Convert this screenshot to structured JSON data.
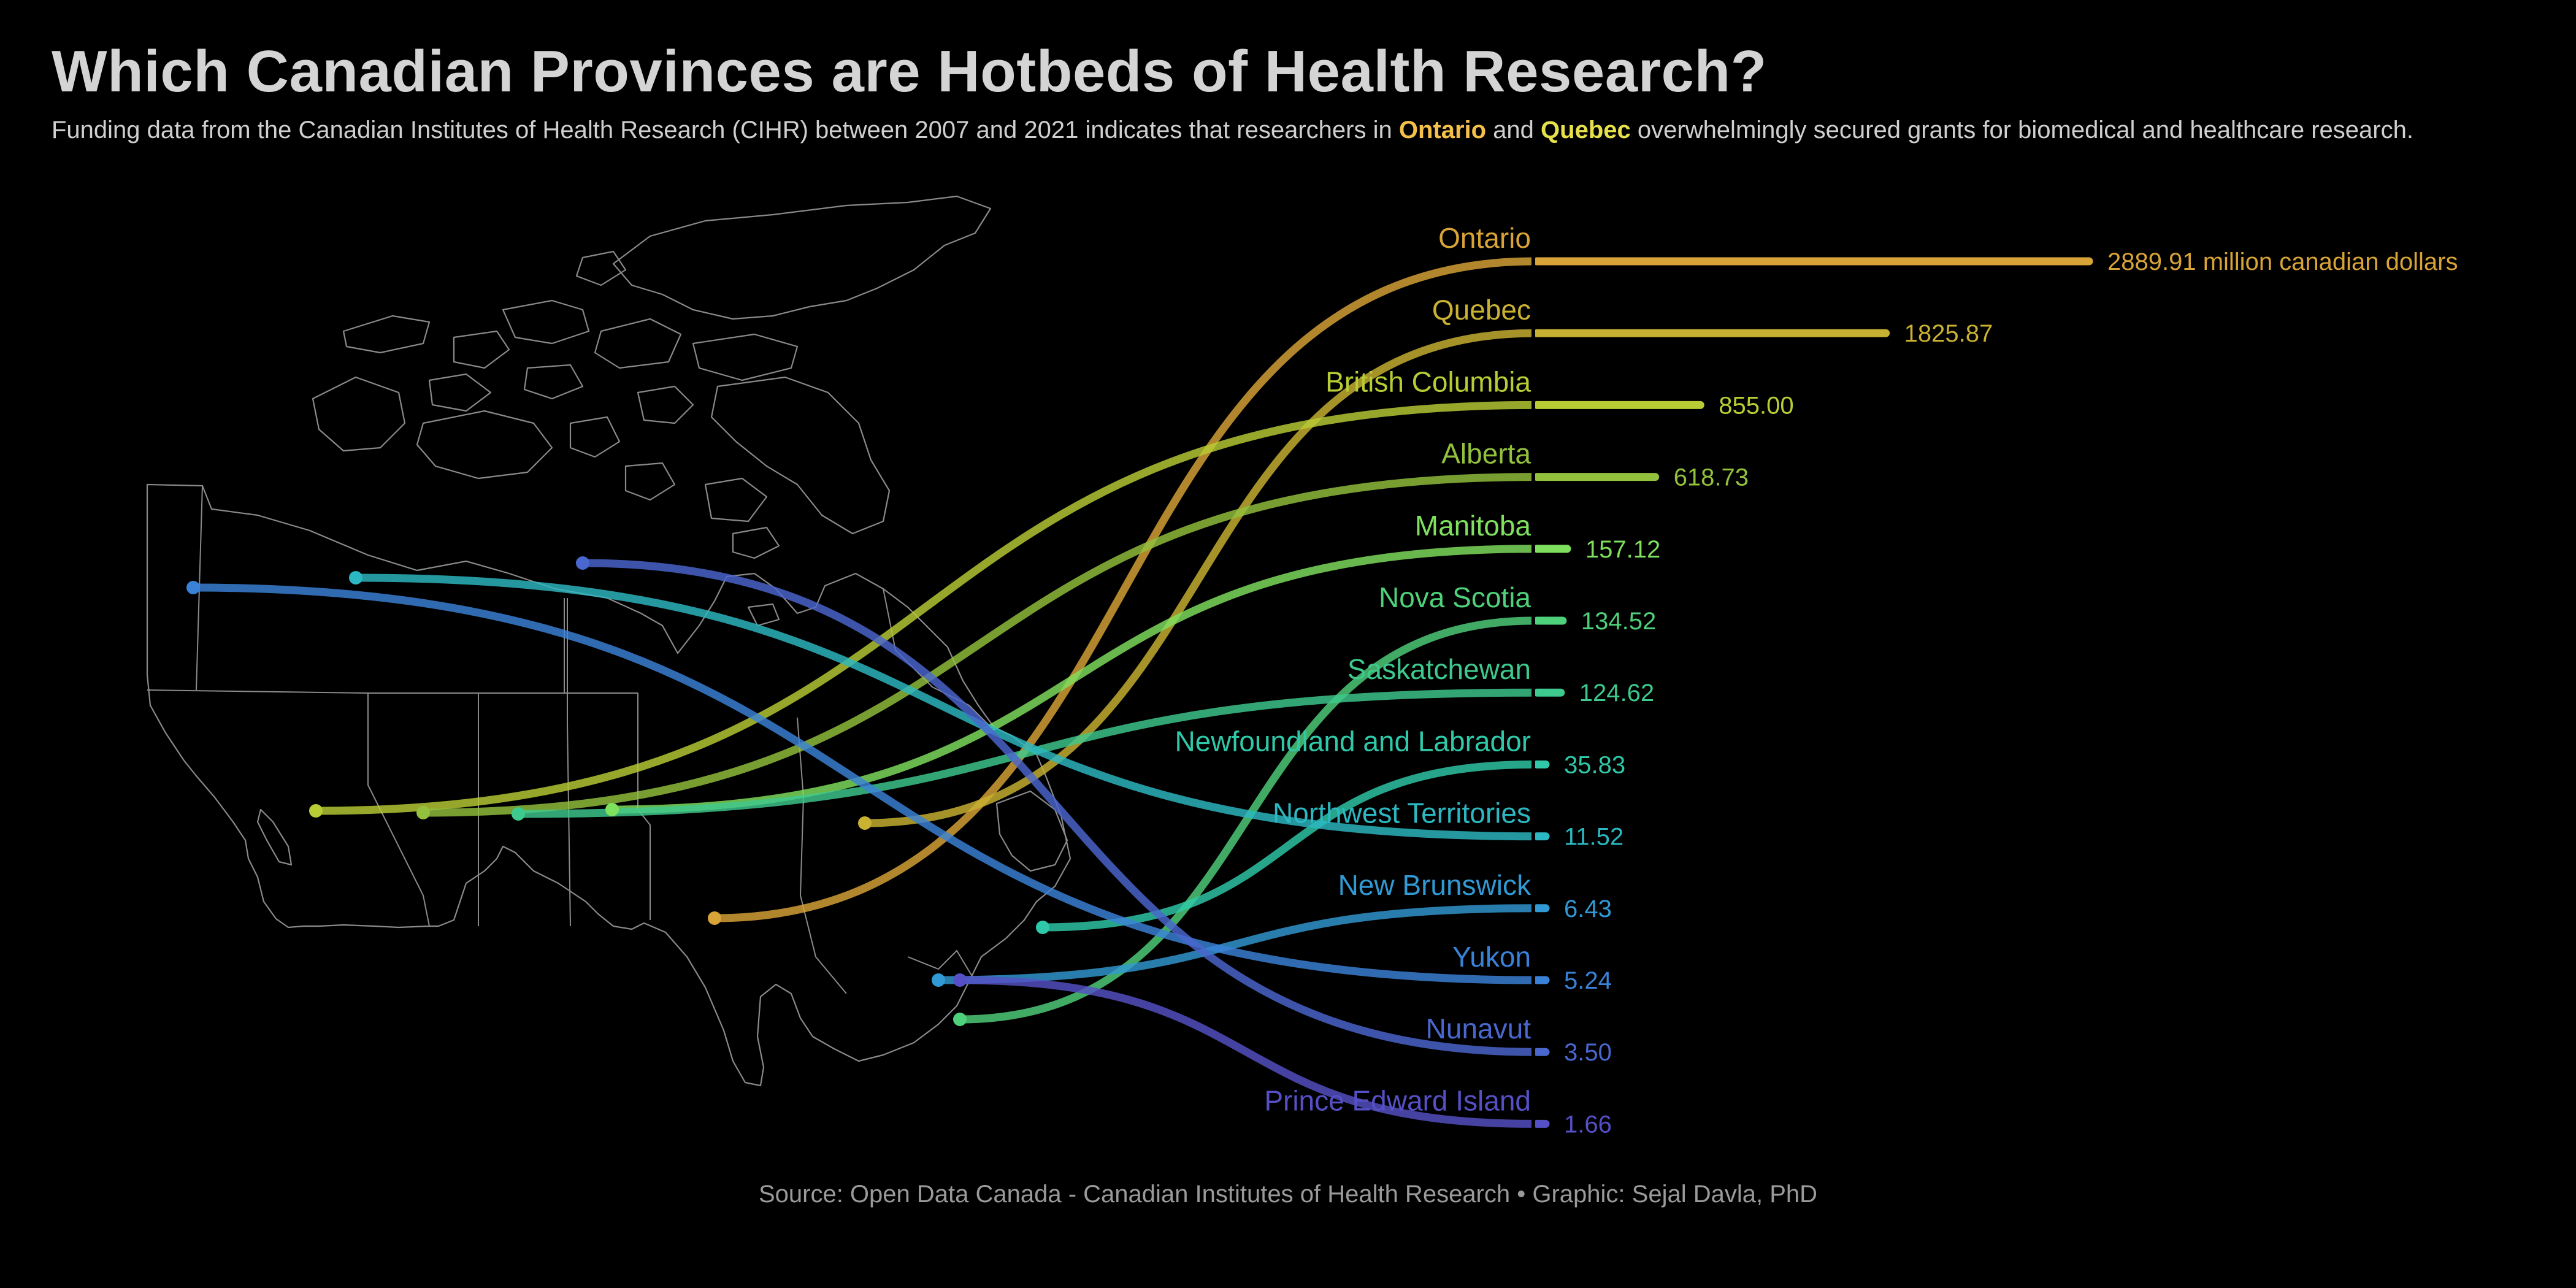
{
  "header": {
    "title": "Which Canadian Provinces are Hotbeds of Health Research?",
    "subtitle_before": "Funding data from the Canadian Institutes of Health Research (CIHR) between 2007 and 2021 indicates that researchers in ",
    "subtitle_hl1": "Ontario",
    "subtitle_mid": " and ",
    "subtitle_hl2": "Quebec",
    "subtitle_after": " overwhelmingly secured grants for biomedical and healthcare research."
  },
  "footer": {
    "source": "Source: Open Data Canada - Canadian Institutes of Health Research • Graphic: Sejal Davla, PhD"
  },
  "colors": {
    "background": "#000000",
    "map_outline": "#8a8a8a",
    "highlight_ontario": "#f4c04a",
    "highlight_quebec": "#e6e14a"
  },
  "chart_data": {
    "type": "bar",
    "orientation": "horizontal",
    "unit_label": "million canadian dollars",
    "categories": [
      "Ontario",
      "Quebec",
      "British Columbia",
      "Alberta",
      "Manitoba",
      "Nova Scotia",
      "Saskatchewan",
      "Newfoundland and Labrador",
      "Northwest Territories",
      "New Brunswick",
      "Yukon",
      "Nunavut",
      "Prince Edward Island"
    ],
    "values": [
      2889.91,
      1825.87,
      855.0,
      618.73,
      157.12,
      134.52,
      124.62,
      35.83,
      11.52,
      6.43,
      5.24,
      3.5,
      1.66
    ],
    "value_labels": [
      "2889.91 million canadian dollars",
      "1825.87",
      "855.00",
      "618.73",
      "157.12",
      "134.52",
      "124.62",
      "35.83",
      "11.52",
      "6.43",
      "5.24",
      "3.50",
      "1.66"
    ],
    "colors": [
      "#d9a437",
      "#c9b232",
      "#b8cc35",
      "#93c13d",
      "#7fe05e",
      "#4fd07a",
      "#3ec98e",
      "#2fc9a9",
      "#2cb8c2",
      "#3199d3",
      "#3a82d8",
      "#4a67cf",
      "#5650c6"
    ],
    "xlim": [
      0,
      2889.91
    ]
  }
}
